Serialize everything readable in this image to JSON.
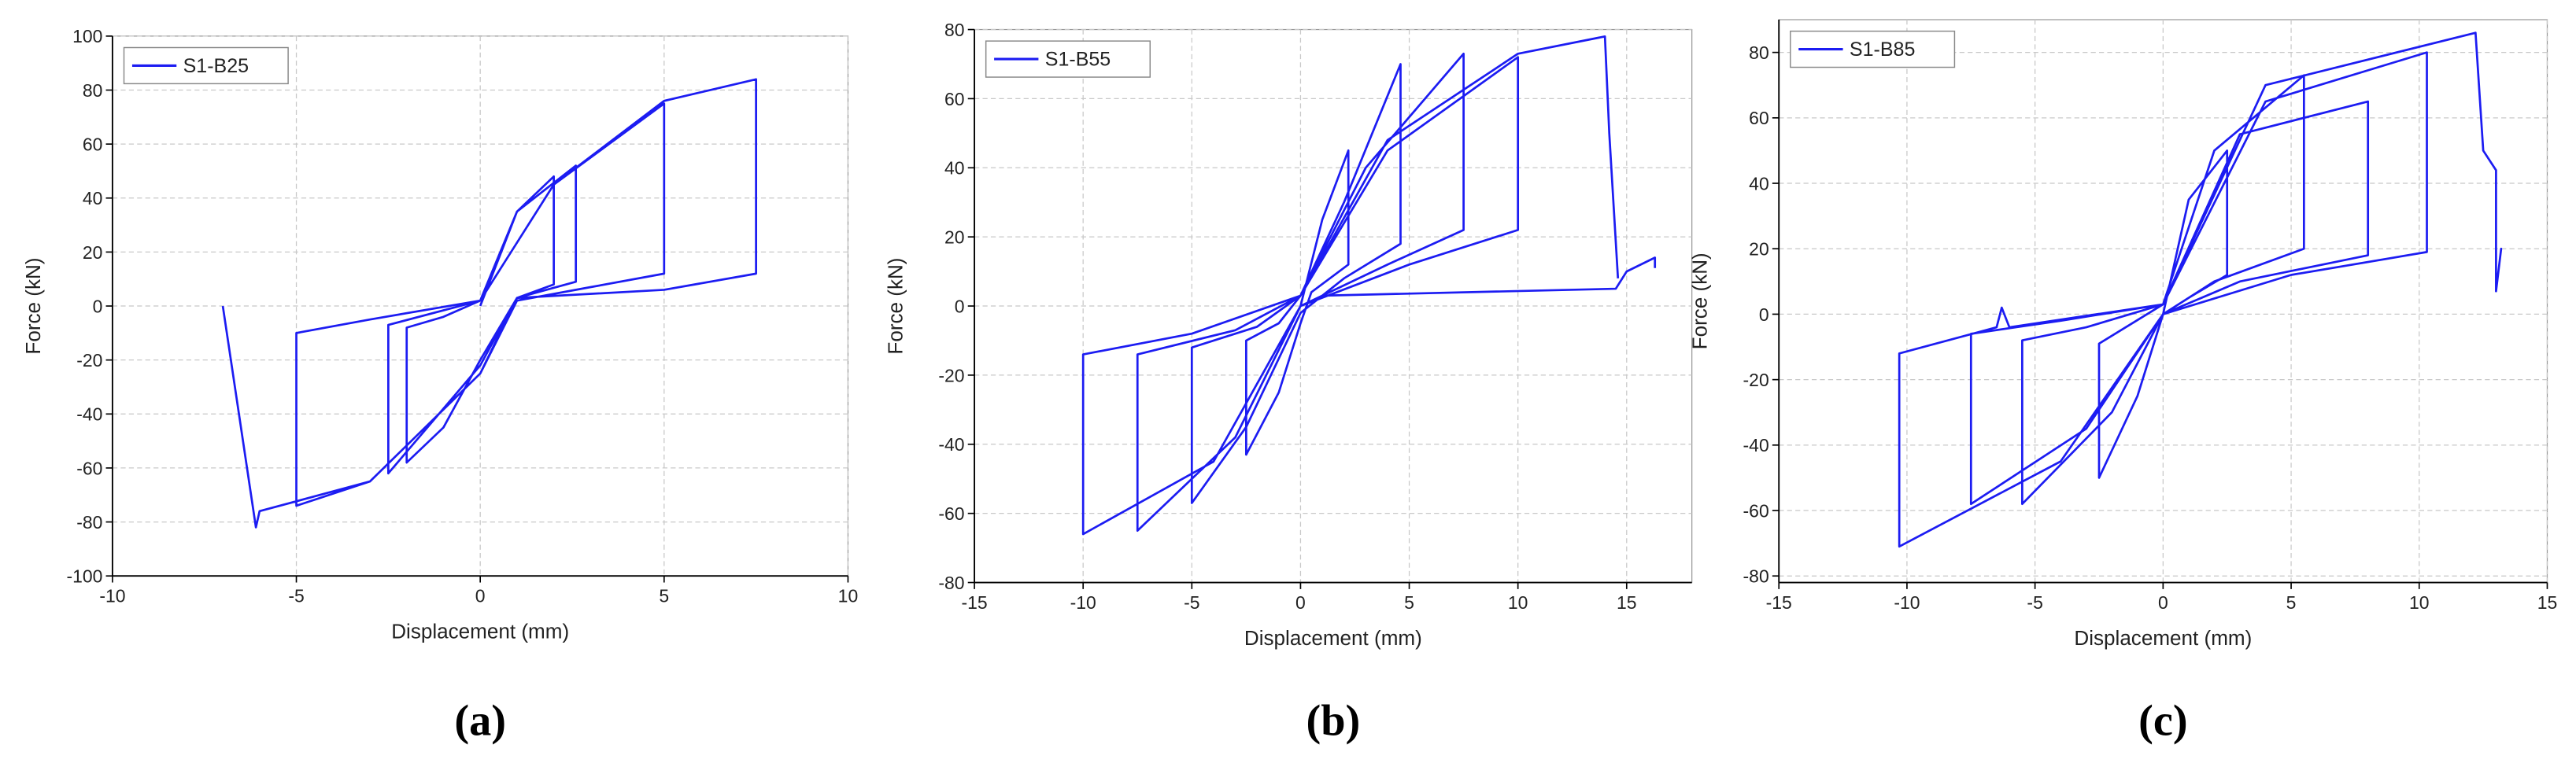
{
  "chart_data": [
    {
      "type": "line",
      "caption": "(a)",
      "xlabel": "Displacement (mm)",
      "ylabel": "Force (kN)",
      "xlim": [
        -10,
        10
      ],
      "ylim": [
        -100,
        100
      ],
      "xticks": [
        -10,
        -5,
        0,
        5,
        10
      ],
      "yticks": [
        -100,
        -80,
        -60,
        -40,
        -20,
        0,
        20,
        40,
        60,
        80,
        100
      ],
      "grid": true,
      "legend": "upper left",
      "x": [
        0,
        1,
        2,
        2,
        1,
        0,
        -1,
        -2,
        -2,
        -1,
        0,
        1,
        2.6,
        2.6,
        1,
        0,
        -2.5,
        -2.5,
        0,
        2,
        5,
        5,
        3,
        1,
        0,
        -3,
        -5,
        -5,
        -3,
        0,
        2,
        5,
        7.5,
        7.5,
        5,
        1,
        0,
        -3,
        -6,
        -6.1,
        -7
      ],
      "series": [
        {
          "name": "S1-B25",
          "color": "#1c1cf2",
          "values": [
            0,
            35,
            48,
            8,
            3,
            -20,
            -45,
            -58,
            -8,
            -4,
            2,
            35,
            52,
            9,
            3,
            -22,
            -62,
            -7,
            2,
            45,
            75,
            12,
            7,
            2,
            -25,
            -65,
            -74,
            -10,
            -5,
            2,
            45,
            76,
            84,
            12,
            6,
            3,
            -25,
            -65,
            -76,
            -82,
            0
          ]
        }
      ]
    },
    {
      "type": "line",
      "caption": "(b)",
      "xlabel": "Displacement (mm)",
      "ylabel": "Force (kN)",
      "xlim": [
        -15,
        18
      ],
      "ylim": [
        -80,
        80
      ],
      "xticks": [
        -15,
        -10,
        -5,
        0,
        5,
        10,
        15
      ],
      "yticks": [
        -80,
        -60,
        -40,
        -20,
        0,
        20,
        40,
        60,
        80
      ],
      "grid": true,
      "legend": "upper left",
      "x": [
        0,
        1,
        2.2,
        2.2,
        0.5,
        0,
        -1,
        -2.5,
        -2.5,
        -1,
        0,
        2,
        4.6,
        4.6,
        2,
        0,
        -2.5,
        -5,
        -5,
        -2,
        0,
        3,
        7.5,
        7.5,
        4,
        0,
        -3,
        -7.5,
        -7.5,
        -3,
        0,
        4,
        10,
        10,
        5,
        0,
        -4,
        -10,
        -10,
        -5,
        0,
        4,
        10,
        14,
        14.2,
        14.6,
        null,
        1,
        14.5,
        15,
        16.3,
        16.3
      ],
      "series": [
        {
          "name": "S1-B55",
          "color": "#1c1cf2",
          "values": [
            0,
            25,
            45,
            12,
            4,
            -5,
            -25,
            -43,
            -10,
            -5,
            3,
            30,
            70,
            18,
            8,
            -2,
            -35,
            -57,
            -12,
            -6,
            3,
            40,
            73,
            22,
            12,
            0,
            -38,
            -65,
            -14,
            -7,
            3,
            45,
            72,
            22,
            12,
            0,
            -45,
            -66,
            -14,
            -8,
            3,
            48,
            73,
            78,
            50,
            8,
            null,
            3,
            5,
            10,
            14,
            11
          ]
        }
      ]
    },
    {
      "type": "line",
      "caption": "(c)",
      "xlabel": "Displacement (mm)",
      "ylabel": "Force (kN)",
      "xlim": [
        -15,
        15
      ],
      "ylim": [
        -82,
        90
      ],
      "xticks": [
        -15,
        -10,
        -5,
        0,
        5,
        10,
        15
      ],
      "yticks": [
        -80,
        -60,
        -40,
        -20,
        0,
        20,
        40,
        60,
        80
      ],
      "grid": true,
      "legend": "upper left",
      "x": [
        0,
        1,
        2.5,
        2.5,
        1,
        0,
        -1,
        -2.5,
        -2.5,
        0,
        2,
        5.5,
        5.5,
        2,
        0,
        -2,
        -5.5,
        -5.5,
        -3,
        0,
        3,
        8,
        8,
        3,
        0,
        -3,
        -7.5,
        -7.5,
        -4,
        0,
        4,
        10.3,
        10.3,
        5,
        0,
        -4,
        -10.3,
        -10.3,
        -6.5,
        -6.3,
        -6,
        0,
        4,
        12.2,
        12.5,
        13,
        13,
        13.2,
        13
      ],
      "series": [
        {
          "name": "S1-B85",
          "color": "#1c1cf2",
          "values": [
            0,
            35,
            50,
            12,
            5,
            0,
            -25,
            -50,
            -9,
            3,
            50,
            73,
            20,
            10,
            0,
            -30,
            -58,
            -8,
            -4,
            3,
            55,
            65,
            18,
            10,
            0,
            -35,
            -58,
            -6,
            -2,
            3,
            65,
            80,
            19,
            12,
            0,
            -45,
            -71,
            -12,
            -4,
            2,
            -4,
            3,
            70,
            86,
            50,
            44,
            7,
            20,
            7
          ]
        }
      ]
    }
  ]
}
